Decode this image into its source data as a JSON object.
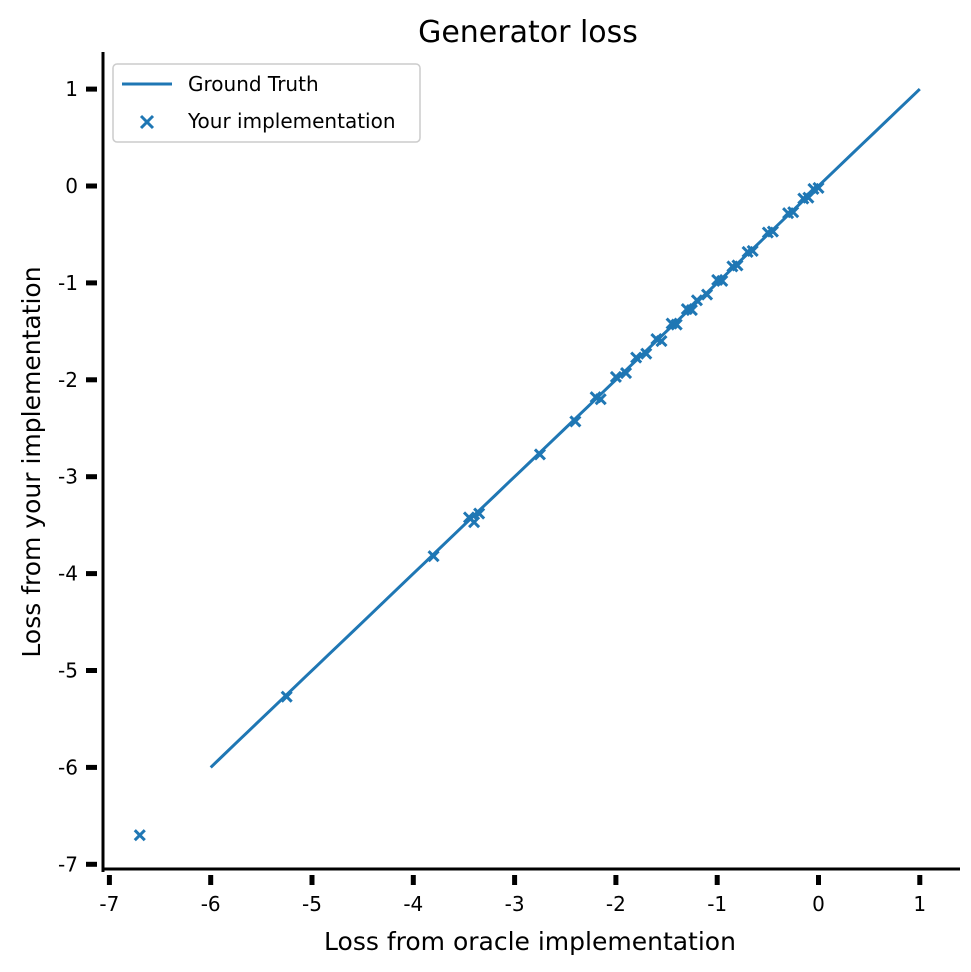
{
  "chart_data": {
    "type": "scatter",
    "title": "Generator loss",
    "xlabel": "Loss from oracle implementation",
    "ylabel": "Loss from your implementation",
    "xlim": [
      -7,
      1.4
    ],
    "ylim": [
      -7.05,
      1.4
    ],
    "x_ticks": [
      -7,
      -6,
      -5,
      -4,
      -3,
      -2,
      -1,
      0,
      1
    ],
    "y_ticks": [
      1,
      0,
      -1,
      -2,
      -3,
      -4,
      -5,
      -6,
      -7
    ],
    "x_tick_labels": [
      "-7",
      "-6",
      "-5",
      "-4",
      "-3",
      "-2",
      "-1",
      "0",
      "1"
    ],
    "y_tick_labels": [
      "1",
      "0",
      "-1",
      "-2",
      "-3",
      "-4",
      "-5",
      "-6",
      "-7"
    ],
    "grid": false,
    "legend_position": "top-left",
    "colors": {
      "series": "#1f77b4",
      "axes": "#000000"
    },
    "series": [
      {
        "name": "Ground Truth",
        "kind": "line",
        "x": [
          -6,
          1
        ],
        "y": [
          -6,
          1
        ]
      },
      {
        "name": "Your implementation",
        "kind": "scatter",
        "marker": "x",
        "x": [
          -6.7,
          -5.25,
          -3.8,
          -3.45,
          -3.4,
          -3.35,
          -2.75,
          -2.4,
          -2.2,
          -2.15,
          -2.0,
          -1.9,
          -1.8,
          -1.7,
          -1.6,
          -1.55,
          -1.45,
          -1.4,
          -1.3,
          -1.25,
          -1.2,
          -1.1,
          -1.0,
          -0.95,
          -0.85,
          -0.8,
          -0.7,
          -0.65,
          -0.5,
          -0.45,
          -0.3,
          -0.25,
          -0.15,
          -0.1,
          -0.05,
          0.0
        ],
        "y": [
          -6.7,
          -5.27,
          -3.82,
          -3.42,
          -3.47,
          -3.38,
          -2.77,
          -2.43,
          -2.18,
          -2.2,
          -1.97,
          -1.93,
          -1.77,
          -1.73,
          -1.58,
          -1.6,
          -1.42,
          -1.43,
          -1.27,
          -1.28,
          -1.18,
          -1.12,
          -0.97,
          -0.98,
          -0.83,
          -0.82,
          -0.68,
          -0.67,
          -0.48,
          -0.47,
          -0.28,
          -0.27,
          -0.13,
          -0.12,
          -0.03,
          -0.02
        ]
      }
    ]
  },
  "legend": {
    "items": [
      {
        "label": "Ground Truth",
        "kind": "line"
      },
      {
        "label": "Your implementation",
        "kind": "marker-x"
      }
    ]
  }
}
